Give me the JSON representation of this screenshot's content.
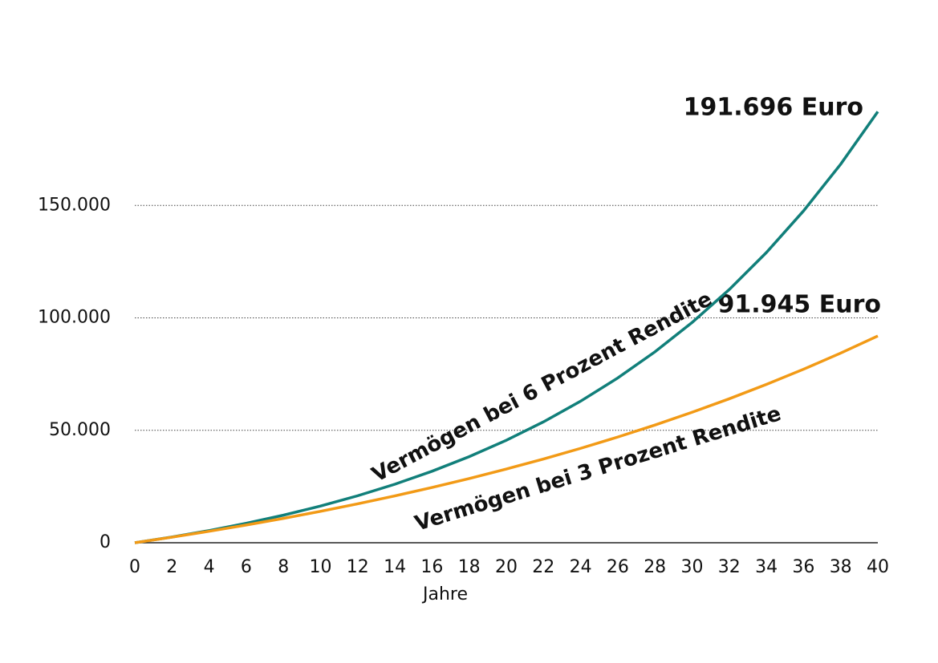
{
  "chart_data": {
    "type": "line",
    "xlabel": "Jahre",
    "x": [
      0,
      2,
      4,
      6,
      8,
      10,
      12,
      14,
      16,
      18,
      20,
      22,
      24,
      26,
      28,
      30,
      32,
      34,
      36,
      38,
      40
    ],
    "series": [
      {
        "name": "Vermögen bei 6 Prozent Rendite",
        "color": "#117f7a",
        "values": [
          0,
          2550,
          5420,
          8640,
          12260,
          16330,
          20900,
          26030,
          31800,
          38280,
          45570,
          53750,
          62950,
          73280,
          84890,
          97930,
          112590,
          129050,
          147560,
          168350,
          191696
        ]
      },
      {
        "name": "Vermögen bei 3 Prozent Rendite",
        "color": "#f29a16",
        "values": [
          0,
          2480,
          5100,
          7890,
          10840,
          13980,
          17310,
          20840,
          24580,
          28550,
          32770,
          37240,
          41980,
          47010,
          52350,
          58010,
          64020,
          70400,
          77160,
          84330,
          91945
        ]
      }
    ],
    "annotations": [
      "191.696 Euro",
      "91.945 Euro"
    ],
    "xlim": [
      0,
      40
    ],
    "xticks": [
      0,
      2,
      4,
      6,
      8,
      10,
      12,
      14,
      16,
      18,
      20,
      22,
      24,
      26,
      28,
      30,
      32,
      34,
      36,
      38,
      40
    ],
    "ylim": [
      0,
      200000
    ],
    "yticks": [
      {
        "value": 0,
        "label": "0"
      },
      {
        "value": 50000,
        "label": "50.000"
      },
      {
        "value": 100000,
        "label": "100.000"
      },
      {
        "value": 150000,
        "label": "150.000"
      }
    ],
    "grid": true
  }
}
